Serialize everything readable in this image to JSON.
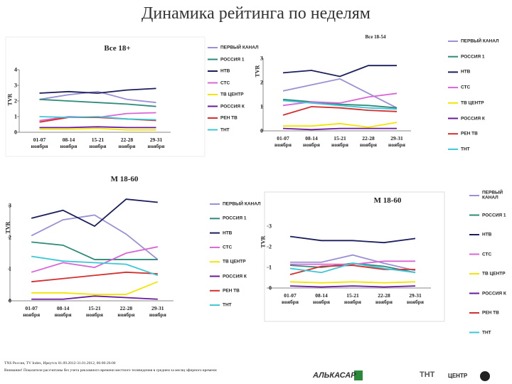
{
  "title": "Динамика рейтинга по неделям",
  "chart_data": [
    {
      "type": "line",
      "title": "Все 18+",
      "y_label": "TVR",
      "categories": [
        "01-07\nноября",
        "08-14\nноября",
        "15-21\nноября",
        "22-28\nноября",
        "29-31\nноября"
      ],
      "ylim": [
        0,
        4
      ],
      "yticks": [
        0,
        1,
        2,
        3,
        4
      ],
      "grid": false,
      "series": [
        {
          "name": "ПЕРВЫЙ КАНАЛ",
          "color": "#9b8fd6",
          "values": [
            2.1,
            2.4,
            2.6,
            2.1,
            1.9
          ]
        },
        {
          "name": "РОССИЯ 1",
          "color": "#2e8b7a",
          "values": [
            2.1,
            2.0,
            1.9,
            1.8,
            1.65
          ]
        },
        {
          "name": "НТВ",
          "color": "#1a1f5c",
          "values": [
            2.5,
            2.6,
            2.5,
            2.7,
            2.8
          ]
        },
        {
          "name": "СТС",
          "color": "#d966d6",
          "values": [
            0.75,
            1.0,
            0.95,
            1.2,
            1.25
          ]
        },
        {
          "name": "ТВ ЦЕНТР",
          "color": "#f2e600",
          "values": [
            0.2,
            0.2,
            0.25,
            0.15,
            0.15
          ]
        },
        {
          "name": "РОССИЯ К",
          "color": "#6a1b9a",
          "values": [
            0.3,
            0.3,
            0.35,
            0.3,
            0.3
          ]
        },
        {
          "name": "РЕН ТВ",
          "color": "#d32f2f",
          "values": [
            0.65,
            0.95,
            0.95,
            0.85,
            0.75
          ]
        },
        {
          "name": "ТНТ",
          "color": "#3cc7d6",
          "values": [
            1.0,
            0.95,
            1.0,
            0.85,
            0.8
          ]
        }
      ]
    },
    {
      "type": "line",
      "title": "Все 18-54",
      "y_label": "TVR",
      "categories": [
        "01-07\nноября",
        "08-14\nноября",
        "15-21\nноября",
        "22-28\nноября",
        "29-31\nноября"
      ],
      "ylim": [
        0,
        3
      ],
      "yticks": [
        0,
        1,
        2,
        3
      ],
      "grid": false,
      "series": [
        {
          "name": "ПЕРВЫЙ КАНАЛ",
          "color": "#9b8fd6",
          "values": [
            1.65,
            1.9,
            2.15,
            1.55,
            0.95
          ]
        },
        {
          "name": "РОССИЯ 1",
          "color": "#2e8b7a",
          "values": [
            1.3,
            1.2,
            1.1,
            1.05,
            0.95
          ]
        },
        {
          "name": "НТВ",
          "color": "#1a1f5c",
          "values": [
            2.4,
            2.5,
            2.25,
            2.7,
            2.7
          ]
        },
        {
          "name": "СТС",
          "color": "#d966d6",
          "values": [
            1.05,
            1.2,
            1.15,
            1.4,
            1.55
          ]
        },
        {
          "name": "ТВ ЦЕНТР",
          "color": "#f2e600",
          "values": [
            0.2,
            0.2,
            0.3,
            0.15,
            0.35
          ]
        },
        {
          "name": "РОССИЯ К",
          "color": "#6a1b9a",
          "values": [
            0.1,
            0.05,
            0.1,
            0.1,
            0.1
          ]
        },
        {
          "name": "РЕН ТВ",
          "color": "#d32f2f",
          "values": [
            0.65,
            1.0,
            0.95,
            0.85,
            0.8
          ]
        },
        {
          "name": "ТНТ",
          "color": "#3cc7d6",
          "values": [
            1.25,
            1.15,
            1.05,
            0.95,
            0.9
          ]
        }
      ]
    },
    {
      "type": "line",
      "title": "М 18-60",
      "y_label": "TVR",
      "categories": [
        "01-07\nноября",
        "08-14\nноября",
        "15-21\nноября",
        "22-28\nноября",
        "29-31\nноября"
      ],
      "ylim": [
        0,
        3
      ],
      "yticks": [
        0,
        1,
        2,
        3
      ],
      "grid": false,
      "series": [
        {
          "name": "ПЕРВЫЙ КАНАЛ",
          "color": "#9b8fd6",
          "values": [
            2.05,
            2.55,
            2.7,
            2.1,
            1.3
          ]
        },
        {
          "name": "РОССИЯ 1",
          "color": "#2e8b7a",
          "values": [
            1.85,
            1.75,
            1.3,
            1.3,
            1.3
          ]
        },
        {
          "name": "НТВ",
          "color": "#1a1f5c",
          "values": [
            2.6,
            2.85,
            2.35,
            3.2,
            3.1
          ]
        },
        {
          "name": "СТС",
          "color": "#d966d6",
          "values": [
            0.9,
            1.2,
            1.05,
            1.5,
            1.7
          ]
        },
        {
          "name": "ТВ ЦЕНТР",
          "color": "#f2e600",
          "values": [
            0.25,
            0.25,
            0.2,
            0.2,
            0.6
          ]
        },
        {
          "name": "РОССИЯ К",
          "color": "#6a1b9a",
          "values": [
            0.05,
            0.05,
            0.15,
            0.1,
            0.05
          ]
        },
        {
          "name": "РЕН ТВ",
          "color": "#d32f2f",
          "values": [
            0.6,
            0.7,
            0.8,
            0.9,
            0.85
          ]
        },
        {
          "name": "ТНТ",
          "color": "#3cc7d6",
          "values": [
            1.4,
            1.25,
            1.2,
            1.15,
            0.8
          ]
        }
      ]
    },
    {
      "type": "line",
      "title": "М 18-60",
      "y_label": "TVR",
      "categories": [
        "01-07\nноября",
        "08-14\nноября",
        "15-21\nноября",
        "22-28\nноября",
        "29-31\nноября"
      ],
      "ylim": [
        0,
        3
      ],
      "yticks": [
        0,
        1,
        2,
        3
      ],
      "grid": false,
      "series": [
        {
          "name": "ПЕРВЫЙ КАНАЛ",
          "color": "#9b8fd6",
          "values": [
            1.25,
            1.25,
            1.6,
            1.2,
            0.85
          ]
        },
        {
          "name": "РОССИЯ 1",
          "color": "#2e8b7a",
          "values": [
            1.1,
            1.0,
            1.2,
            1.05,
            0.75
          ]
        },
        {
          "name": "НТВ",
          "color": "#1a1f5c",
          "values": [
            2.5,
            2.3,
            2.3,
            2.2,
            2.4
          ]
        },
        {
          "name": "СТС",
          "color": "#d966d6",
          "values": [
            1.15,
            1.15,
            1.15,
            1.3,
            1.3
          ]
        },
        {
          "name": "ТВ ЦЕНТР",
          "color": "#f2e600",
          "values": [
            0.3,
            0.25,
            0.3,
            0.25,
            0.3
          ]
        },
        {
          "name": "РОССИЯ К",
          "color": "#6a1b9a",
          "values": [
            0.1,
            0.05,
            0.1,
            0.05,
            0.1
          ]
        },
        {
          "name": "РЕН ТВ",
          "color": "#d32f2f",
          "values": [
            0.65,
            1.05,
            1.1,
            0.9,
            0.9
          ]
        },
        {
          "name": "ТНТ",
          "color": "#3cc7d6",
          "values": [
            0.95,
            0.75,
            1.2,
            0.95,
            0.75
          ]
        }
      ]
    }
  ],
  "footer": {
    "source": "TNS Россия, TV Index, Иркутск 01.09.2012-31.01.2012, 06:00-26:00",
    "note": "Внимание! Показатели рассчитаны без учета рекламного времени местного телевидения в среднем за месяц эфирного времени"
  },
  "logos": [
    "АЛЬКАСАР",
    "ТНТ",
    "ЦЕНТР"
  ]
}
